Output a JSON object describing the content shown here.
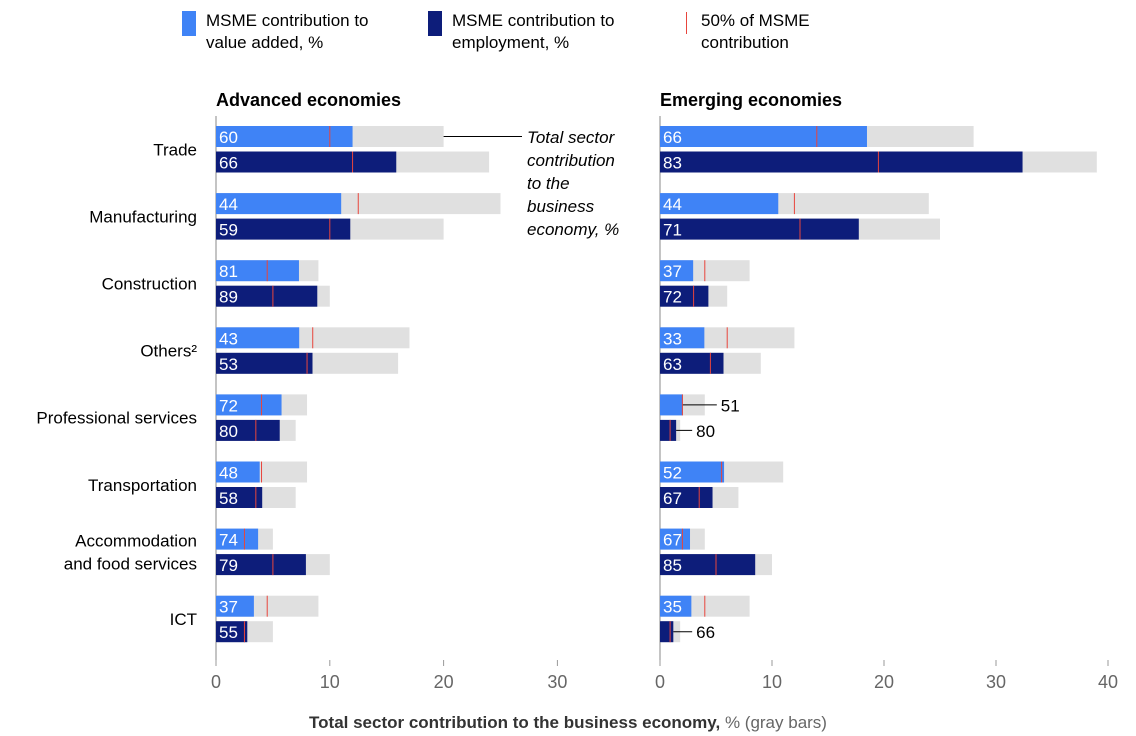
{
  "legend": {
    "value_added": "MSME contribution to value added, %",
    "employment": "MSME contribution to employment, %",
    "half_marker": "50% of MSME contribution"
  },
  "colors": {
    "value_added": "#3f83f6",
    "employment": "#0d1d7a",
    "total_gray": "#e0e0e0",
    "half_marker": "#e8453c",
    "axis_text": "#666666"
  },
  "chart_data": {
    "type": "bar",
    "orientation": "horizontal",
    "xlabel_bold": "Total sector contribution to the business economy,",
    "xlabel_rest": " % (gray bars)",
    "annotation": "Total sector contribution to the business economy, %",
    "categories": [
      "Trade",
      "Manufacturing",
      "Construction",
      "Others²",
      "Professional services",
      "Transportation",
      "Accommodation and food services",
      "ICT"
    ],
    "panels": [
      {
        "title": "Advanced economies",
        "xlim": [
          0,
          40
        ],
        "ticks": [
          0,
          10,
          20,
          30
        ],
        "value_added": {
          "total": [
            20,
            25,
            9,
            17,
            8,
            8,
            5,
            9
          ],
          "msme_pct": [
            60,
            44,
            81,
            43,
            72,
            48,
            74,
            37
          ]
        },
        "employment": {
          "total": [
            24,
            20,
            10,
            16,
            7,
            7,
            10,
            5
          ],
          "msme_pct": [
            66,
            59,
            89,
            53,
            80,
            58,
            79,
            55
          ]
        }
      },
      {
        "title": "Emerging economies",
        "xlim": [
          0,
          40
        ],
        "ticks": [
          0,
          10,
          20,
          30,
          40
        ],
        "value_added": {
          "total": [
            28,
            24,
            8,
            12,
            4,
            11,
            4,
            8
          ],
          "msme_pct": [
            66,
            44,
            37,
            33,
            51,
            52,
            67,
            35
          ]
        },
        "employment": {
          "total": [
            39,
            25,
            6,
            9,
            1.8,
            7,
            10,
            1.8
          ],
          "msme_pct": [
            83,
            71,
            72,
            63,
            80,
            67,
            85,
            66
          ]
        }
      }
    ]
  }
}
